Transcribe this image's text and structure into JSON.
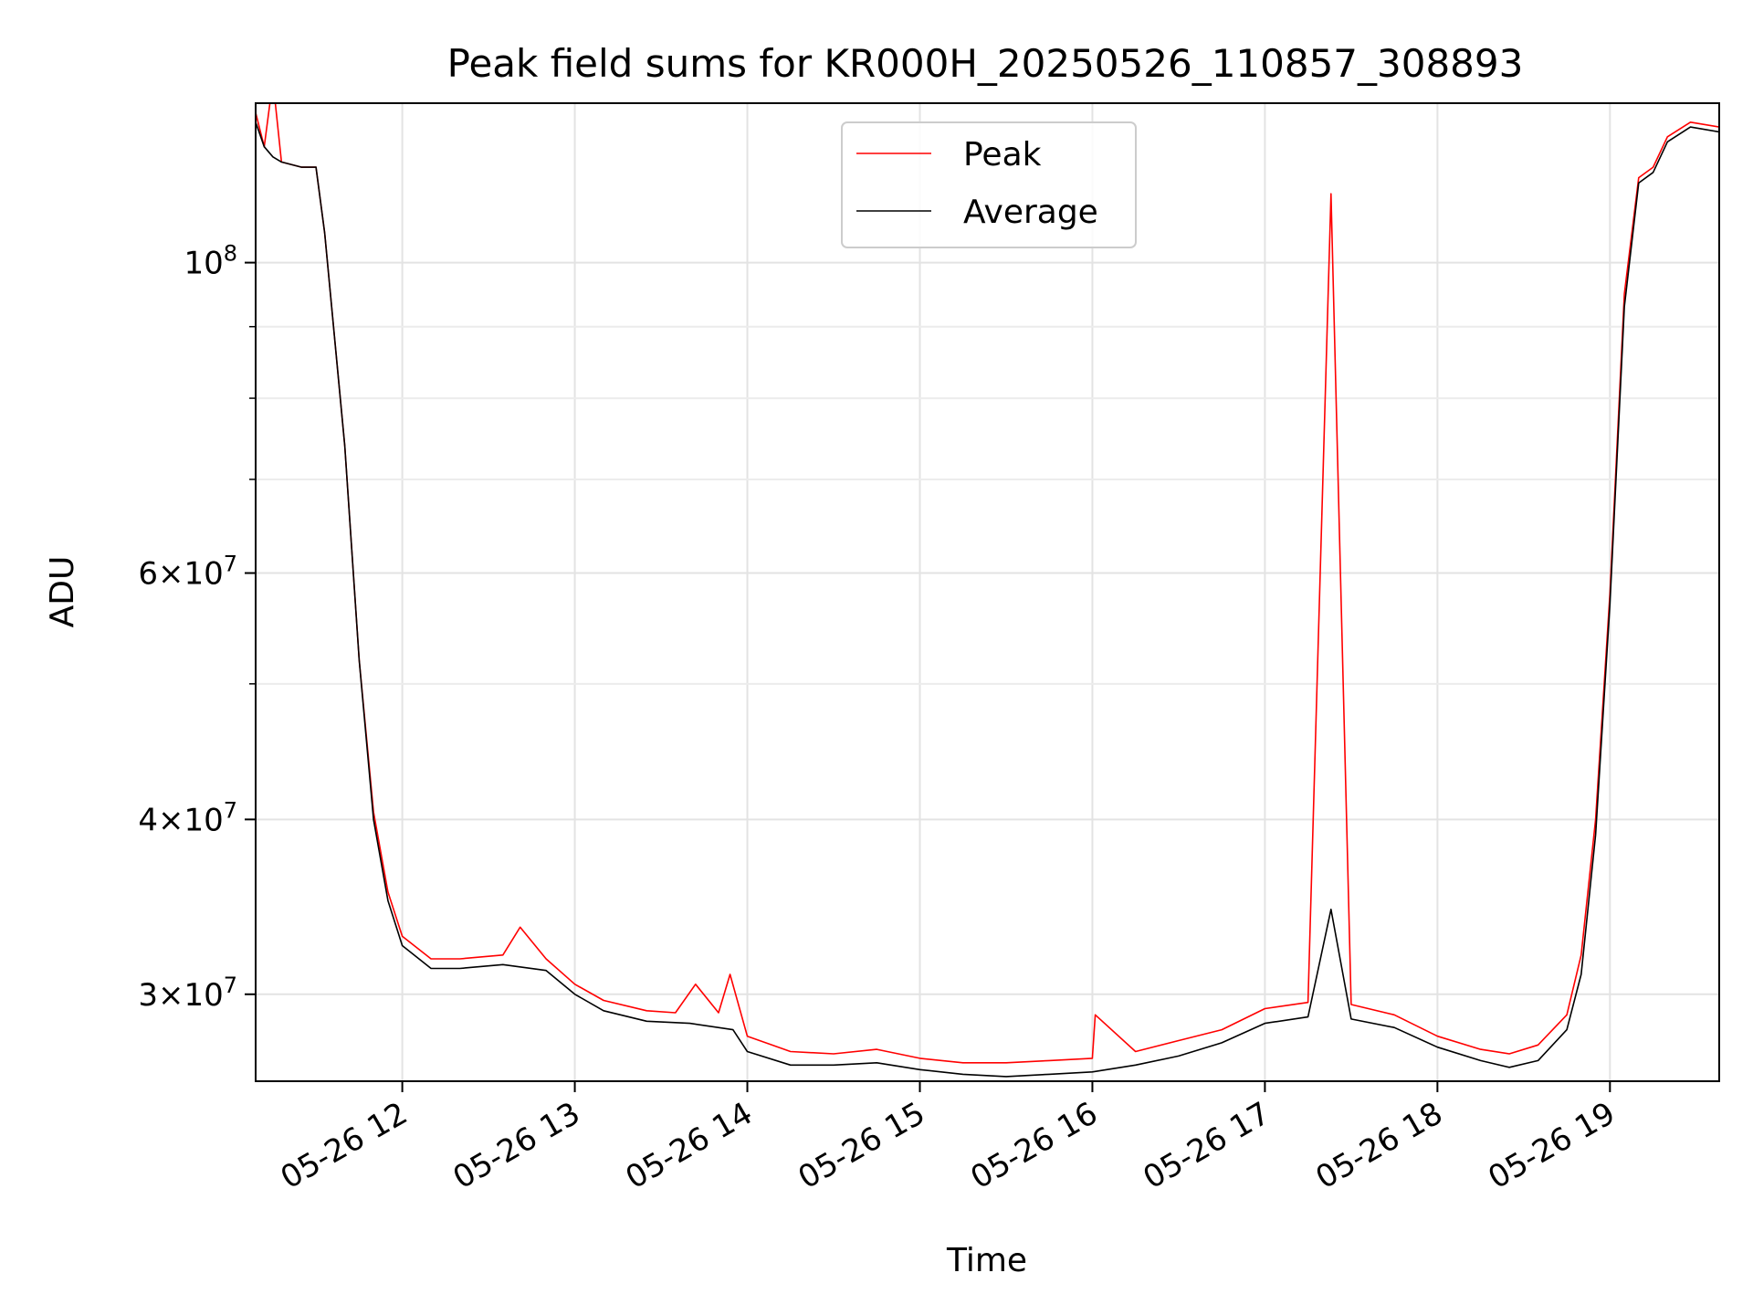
{
  "chart_data": {
    "type": "line",
    "title": "Peak field sums for KR000H_20250526_110857_308893",
    "xlabel": "Time",
    "ylabel": "ADU",
    "y_scale": "log",
    "x_range": [
      "2025-05-26 11:09",
      "2025-05-26 19:38"
    ],
    "ylim": [
      26000000,
      130000000
    ],
    "grid": true,
    "legend_position": "top-center",
    "x_ticks": [
      {
        "value": "2025-05-26 12:00",
        "label": "05-26 12"
      },
      {
        "value": "2025-05-26 13:00",
        "label": "05-26 13"
      },
      {
        "value": "2025-05-26 14:00",
        "label": "05-26 14"
      },
      {
        "value": "2025-05-26 15:00",
        "label": "05-26 15"
      },
      {
        "value": "2025-05-26 16:00",
        "label": "05-26 16"
      },
      {
        "value": "2025-05-26 17:00",
        "label": "05-26 17"
      },
      {
        "value": "2025-05-26 18:00",
        "label": "05-26 18"
      },
      {
        "value": "2025-05-26 19:00",
        "label": "05-26 19"
      }
    ],
    "y_ticks_major": [
      {
        "value": 100000000,
        "base": "10",
        "exp": "8",
        "mant": ""
      },
      {
        "value": 60000000,
        "mant": "6",
        "base": "10",
        "exp": "7"
      },
      {
        "value": 40000000,
        "mant": "4",
        "base": "10",
        "exp": "7"
      },
      {
        "value": 30000000,
        "mant": "3",
        "base": "10",
        "exp": "7"
      }
    ],
    "y_ticks_minor": [
      90000000,
      80000000,
      70000000,
      50000000
    ],
    "series": [
      {
        "name": "Peak",
        "color": "#ff0000",
        "x": [
          "2025-05-26 11:09",
          "2025-05-26 11:12",
          "2025-05-26 11:15",
          "2025-05-26 11:18",
          "2025-05-26 11:25",
          "2025-05-26 11:30",
          "2025-05-26 11:33",
          "2025-05-26 11:40",
          "2025-05-26 11:45",
          "2025-05-26 11:50",
          "2025-05-26 11:55",
          "2025-05-26 12:00",
          "2025-05-26 12:10",
          "2025-05-26 12:20",
          "2025-05-26 12:35",
          "2025-05-26 12:41",
          "2025-05-26 12:50",
          "2025-05-26 13:00",
          "2025-05-26 13:10",
          "2025-05-26 13:25",
          "2025-05-26 13:35",
          "2025-05-26 13:42",
          "2025-05-26 13:50",
          "2025-05-26 13:54",
          "2025-05-26 14:00",
          "2025-05-26 14:15",
          "2025-05-26 14:30",
          "2025-05-26 14:45",
          "2025-05-26 15:00",
          "2025-05-26 15:15",
          "2025-05-26 15:30",
          "2025-05-26 15:45",
          "2025-05-26 16:00",
          "2025-05-26 16:01",
          "2025-05-26 16:15",
          "2025-05-26 16:30",
          "2025-05-26 16:45",
          "2025-05-26 17:00",
          "2025-05-26 17:15",
          "2025-05-26 17:23",
          "2025-05-26 17:30",
          "2025-05-26 17:45",
          "2025-05-26 18:00",
          "2025-05-26 18:15",
          "2025-05-26 18:25",
          "2025-05-26 18:35",
          "2025-05-26 18:45",
          "2025-05-26 18:50",
          "2025-05-26 18:55",
          "2025-05-26 19:00",
          "2025-05-26 19:05",
          "2025-05-26 19:10",
          "2025-05-26 19:15",
          "2025-05-26 19:20",
          "2025-05-26 19:28",
          "2025-05-26 19:38"
        ],
        "values": [
          128000000,
          121000000,
          135000000,
          118000000,
          117000000,
          117000000,
          105000000,
          74000000,
          52000000,
          40500000,
          35500000,
          33000000,
          31800000,
          31800000,
          32000000,
          33500000,
          31800000,
          30500000,
          29700000,
          29200000,
          29100000,
          30500000,
          29100000,
          31000000,
          28000000,
          27300000,
          27200000,
          27400000,
          27000000,
          26800000,
          26800000,
          26900000,
          27000000,
          29000000,
          27300000,
          27800000,
          28300000,
          29300000,
          29600000,
          112000000,
          29500000,
          29000000,
          28000000,
          27400000,
          27200000,
          27600000,
          29000000,
          32000000,
          40000000,
          58000000,
          95000000,
          115000000,
          117000000,
          123000000,
          126000000,
          125000000
        ]
      },
      {
        "name": "Average",
        "color": "#000000",
        "x": [
          "2025-05-26 11:09",
          "2025-05-26 11:12",
          "2025-05-26 11:15",
          "2025-05-26 11:18",
          "2025-05-26 11:25",
          "2025-05-26 11:30",
          "2025-05-26 11:33",
          "2025-05-26 11:40",
          "2025-05-26 11:45",
          "2025-05-26 11:50",
          "2025-05-26 11:55",
          "2025-05-26 12:00",
          "2025-05-26 12:10",
          "2025-05-26 12:20",
          "2025-05-26 12:35",
          "2025-05-26 12:50",
          "2025-05-26 13:00",
          "2025-05-26 13:10",
          "2025-05-26 13:25",
          "2025-05-26 13:40",
          "2025-05-26 13:55",
          "2025-05-26 14:00",
          "2025-05-26 14:15",
          "2025-05-26 14:30",
          "2025-05-26 14:45",
          "2025-05-26 15:00",
          "2025-05-26 15:15",
          "2025-05-26 15:30",
          "2025-05-26 15:45",
          "2025-05-26 16:00",
          "2025-05-26 16:15",
          "2025-05-26 16:30",
          "2025-05-26 16:45",
          "2025-05-26 17:00",
          "2025-05-26 17:15",
          "2025-05-26 17:23",
          "2025-05-26 17:30",
          "2025-05-26 17:45",
          "2025-05-26 18:00",
          "2025-05-26 18:15",
          "2025-05-26 18:25",
          "2025-05-26 18:35",
          "2025-05-26 18:45",
          "2025-05-26 18:50",
          "2025-05-26 18:55",
          "2025-05-26 19:00",
          "2025-05-26 19:05",
          "2025-05-26 19:10",
          "2025-05-26 19:15",
          "2025-05-26 19:20",
          "2025-05-26 19:28",
          "2025-05-26 19:38"
        ],
        "values": [
          126000000,
          121000000,
          119000000,
          118000000,
          117000000,
          117000000,
          105000000,
          74000000,
          52000000,
          40000000,
          35000000,
          32500000,
          31300000,
          31300000,
          31500000,
          31200000,
          30000000,
          29200000,
          28700000,
          28600000,
          28300000,
          27300000,
          26700000,
          26700000,
          26800000,
          26500000,
          26300000,
          26200000,
          26300000,
          26400000,
          26700000,
          27100000,
          27700000,
          28600000,
          28900000,
          34500000,
          28800000,
          28400000,
          27500000,
          26900000,
          26600000,
          26900000,
          28300000,
          31000000,
          39000000,
          57000000,
          93000000,
          114000000,
          116000000,
          122000000,
          125000000,
          124000000
        ]
      }
    ]
  }
}
